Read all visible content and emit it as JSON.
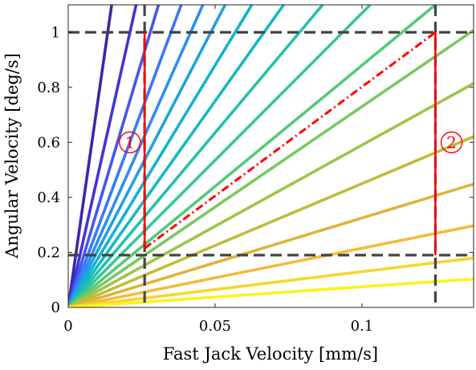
{
  "chart_data": {
    "type": "line",
    "xlabel": "Fast Jack Velocity [mm/s]",
    "ylabel": "Angular Velocity [deg/s]",
    "xlim": [
      0,
      0.138
    ],
    "ylim": [
      0,
      1.1
    ],
    "x_ticks": [
      0,
      0.05,
      0.1
    ],
    "x_tick_labels": [
      "0",
      "0.05",
      "0.1"
    ],
    "y_ticks": [
      0,
      0.2,
      0.4,
      0.6,
      0.8,
      1
    ],
    "y_tick_labels": [
      "0",
      "0.2",
      "0.4",
      "0.6",
      "0.8",
      "1"
    ],
    "grid": false,
    "series": [
      {
        "slope": 74.4,
        "color": "#3e26a8"
      },
      {
        "slope": 47.6,
        "color": "#4433d4"
      },
      {
        "slope": 35.8,
        "color": "#4656ee"
      },
      {
        "slope": 28.6,
        "color": "#3a77fb"
      },
      {
        "slope": 24.0,
        "color": "#2d8ef0"
      },
      {
        "slope": 20.6,
        "color": "#1fa1e0"
      },
      {
        "slope": 17.6,
        "color": "#12b2d2"
      },
      {
        "slope": 15.0,
        "color": "#14b9c0"
      },
      {
        "slope": 12.7,
        "color": "#25c0ab"
      },
      {
        "slope": 10.7,
        "color": "#3ac595"
      },
      {
        "slope": 8.8,
        "color": "#54c97a"
      },
      {
        "slope": 7.3,
        "color": "#78c95f"
      },
      {
        "slope": 5.9,
        "color": "#9dc549"
      },
      {
        "slope": 4.5,
        "color": "#c0bc38"
      },
      {
        "slope": 3.25,
        "color": "#deb43a"
      },
      {
        "slope": 2.15,
        "color": "#f3bc3b"
      },
      {
        "slope": 1.3,
        "color": "#f8d52f"
      },
      {
        "slope": 0.75,
        "color": "#f9f41d"
      }
    ],
    "reference_lines": {
      "vertical": [
        0.026,
        0.125
      ],
      "horizontal": [
        0.19,
        1.0
      ],
      "color": "#444444"
    },
    "operating_region": {
      "color": "#ff0000",
      "path": [
        [
          0.026,
          1.0
        ],
        [
          0.026,
          0.215
        ],
        [
          0.125,
          1.0
        ],
        [
          0.125,
          0.19
        ]
      ]
    },
    "annotations": [
      {
        "text": "①",
        "x": 0.021,
        "y": 0.6
      },
      {
        "text": "②",
        "x": 0.1305,
        "y": 0.6
      }
    ]
  }
}
